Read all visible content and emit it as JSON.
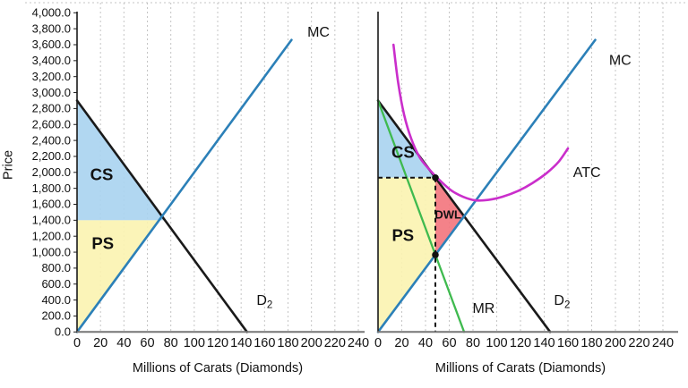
{
  "figure_name": "surplus-competition-vs-monopoly",
  "chart_data": [
    {
      "name": "perfect-competition-chart",
      "type": "line",
      "title": "",
      "xlabel": "Millions of Carats (Diamonds)",
      "ylabel": "Price",
      "xlim": [
        0,
        240
      ],
      "ylim": [
        0,
        4000
      ],
      "grid": "vertical-dotted",
      "legend_position": "none",
      "x_ticks": {
        "values": [
          0,
          20,
          40,
          60,
          80,
          100,
          120,
          140,
          160,
          180,
          200,
          220,
          240
        ],
        "labels": [
          "0",
          "20",
          "40",
          "60",
          "80",
          "100",
          "120",
          "140",
          "160",
          "180",
          "200",
          "220",
          "240"
        ]
      },
      "y_ticks": {
        "values": [
          0,
          200,
          400,
          600,
          800,
          1000,
          1200,
          1400,
          1600,
          1800,
          2000,
          2200,
          2400,
          2600,
          2800,
          3000,
          3200,
          3400,
          3600,
          3800,
          4000
        ],
        "labels": [
          "0.0",
          "200.0",
          "400.0",
          "600.0",
          "800.0",
          "1,000.0",
          "1,200.0",
          "1,400.0",
          "1,600.0",
          "1,800.0",
          "2,000.0",
          "2,200.0",
          "2,400.0",
          "2,600.0",
          "2,800.0",
          "3,000.0",
          "3,200.0",
          "3,400.0",
          "3,600.0",
          "3,800.0",
          "4,000.0"
        ]
      },
      "series": [
        {
          "id": "demand-d2",
          "name": "Demand D2",
          "color": "#1a1a1a",
          "width": 2.6,
          "points": [
            [
              0,
              2900
            ],
            [
              145,
              0
            ]
          ]
        },
        {
          "id": "mc",
          "name": "Marginal Cost (Supply)",
          "color": "#2c80b8",
          "width": 2.6,
          "points": [
            [
              0,
              0
            ],
            [
              183,
              3660
            ]
          ]
        }
      ],
      "areas": [
        {
          "id": "consumer-surplus",
          "label": "CS",
          "color": "#a9d3ef",
          "points": [
            [
              0,
              2900
            ],
            [
              0,
              1400
            ],
            [
              75,
              1400
            ]
          ]
        },
        {
          "id": "producer-surplus",
          "label": "PS",
          "color": "#fbf3b0",
          "points": [
            [
              0,
              0
            ],
            [
              0,
              1400
            ],
            [
              70,
              1400
            ]
          ]
        }
      ],
      "equilibrium": {
        "quantity": 72.5,
        "price_level_shaded": 1400
      },
      "labels": [
        {
          "id": "mc",
          "text": "MC",
          "q": 206,
          "p": 3700,
          "size": 16
        },
        {
          "id": "d2",
          "text": "D",
          "sub": "2",
          "q": 160,
          "p": 340,
          "size": 16
        },
        {
          "id": "cs",
          "text": "CS",
          "q": 21,
          "p": 1900,
          "size": 18.5,
          "bold": true
        },
        {
          "id": "ps",
          "text": "PS",
          "q": 22,
          "p": 1040,
          "size": 18.5,
          "bold": true
        }
      ]
    },
    {
      "name": "monopoly-chart",
      "type": "line",
      "title": "",
      "xlabel": "Millions of Carats (Diamonds)",
      "ylabel": "",
      "xlim": [
        0,
        240
      ],
      "ylim": [
        0,
        4000
      ],
      "grid": "vertical-dotted",
      "legend_position": "none",
      "x_ticks": {
        "values": [
          0,
          20,
          40,
          60,
          80,
          100,
          120,
          140,
          160,
          180,
          200,
          220,
          240
        ],
        "labels": [
          "0",
          "20",
          "40",
          "60",
          "80",
          "100",
          "120",
          "140",
          "160",
          "180",
          "200",
          "220",
          "240"
        ]
      },
      "y_ticks": {
        "values": [],
        "labels": []
      },
      "series": [
        {
          "id": "demand-d2",
          "name": "Demand D2",
          "color": "#1a1a1a",
          "width": 2.6,
          "points": [
            [
              0,
              2900
            ],
            [
              145,
              0
            ]
          ]
        },
        {
          "id": "mr",
          "name": "Marginal Revenue",
          "color": "#3fba4f",
          "width": 2.3,
          "points": [
            [
              0,
              2900
            ],
            [
              72.5,
              0
            ]
          ]
        },
        {
          "id": "mc",
          "name": "Marginal Cost",
          "color": "#2c80b8",
          "width": 2.6,
          "points": [
            [
              0,
              0
            ],
            [
              183,
              3660
            ]
          ]
        },
        {
          "id": "atc",
          "name": "Average Total Cost",
          "color": "#ca2ecb",
          "width": 2.6,
          "smooth": true,
          "points": [
            [
              13,
              3600
            ],
            [
              17,
              3120
            ],
            [
              22,
              2720
            ],
            [
              28,
              2420
            ],
            [
              35,
              2190
            ],
            [
              43,
              2040
            ],
            [
              52,
              1900
            ],
            [
              62,
              1770
            ],
            [
              72,
              1692
            ],
            [
              82,
              1650
            ],
            [
              93,
              1655
            ],
            [
              105,
              1695
            ],
            [
              118,
              1768
            ],
            [
              130,
              1865
            ],
            [
              142,
              1990
            ],
            [
              152,
              2130
            ],
            [
              160,
              2300
            ]
          ]
        }
      ],
      "areas": [
        {
          "id": "consumer-surplus",
          "label": "CS",
          "color": "#a9d3ef",
          "points": [
            [
              0,
              2900
            ],
            [
              0,
              1933.3
            ],
            [
              48.3,
              1933.3
            ]
          ]
        },
        {
          "id": "producer-surplus",
          "label": "PS",
          "color": "#fbf3b0",
          "points": [
            [
              0,
              0
            ],
            [
              0,
              1933.3
            ],
            [
              48.3,
              1933.3
            ],
            [
              48.3,
              966.7
            ]
          ]
        },
        {
          "id": "deadweight-loss",
          "label": "DWL",
          "color": "#f3747c",
          "points": [
            [
              48.3,
              1933.3
            ],
            [
              72.5,
              1450
            ],
            [
              48.3,
              966.7
            ]
          ]
        }
      ],
      "guides": {
        "quantity": 48.3,
        "price": 1933.3
      },
      "points": [
        {
          "id": "monopoly-price-point",
          "q": 48.3,
          "p": 1933.3
        },
        {
          "id": "mr-mc-intersection-point",
          "q": 48.3,
          "p": 966.7
        }
      ],
      "labels": [
        {
          "id": "mc",
          "text": "MC",
          "q": 204,
          "p": 3350,
          "size": 16
        },
        {
          "id": "atc",
          "text": "ATC",
          "q": 176,
          "p": 1940,
          "size": 16
        },
        {
          "id": "mr",
          "text": "MR",
          "q": 89,
          "p": 240,
          "size": 16
        },
        {
          "id": "d2",
          "text": "D",
          "sub": "2",
          "q": 155,
          "p": 340,
          "size": 16
        },
        {
          "id": "cs",
          "text": "CS",
          "q": 21,
          "p": 2180,
          "size": 18.5,
          "bold": true
        },
        {
          "id": "ps",
          "text": "PS",
          "q": 21,
          "p": 1140,
          "size": 18.5,
          "bold": true
        },
        {
          "id": "dwl",
          "text": "DWL",
          "q": 59,
          "p": 1420,
          "size": 13,
          "bold": true
        }
      ]
    }
  ]
}
